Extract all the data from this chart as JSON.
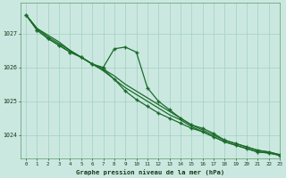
{
  "background_color": "#cbe8e0",
  "plot_bg_color": "#cbe8e0",
  "grid_color": "#a8d4c8",
  "line_color": "#1a6b2a",
  "marker_color": "#1a6b2a",
  "xlabel": "Graphe pression niveau de la mer (hPa)",
  "xlim": [
    -0.5,
    23
  ],
  "ylim": [
    1023.3,
    1027.9
  ],
  "yticks": [
    1024,
    1025,
    1026,
    1027
  ],
  "xticks": [
    0,
    1,
    2,
    3,
    4,
    5,
    6,
    7,
    8,
    9,
    10,
    11,
    12,
    13,
    14,
    15,
    16,
    17,
    18,
    19,
    20,
    21,
    22,
    23
  ],
  "series": [
    {
      "x": [
        0,
        1,
        2,
        3,
        4,
        5,
        6,
        7,
        8,
        9,
        10,
        11,
        12,
        13,
        14,
        15,
        16,
        17,
        18,
        19,
        20,
        21,
        22,
        23
      ],
      "y": [
        1027.55,
        1027.15,
        1026.95,
        1026.75,
        1026.5,
        1026.3,
        1026.1,
        1025.95,
        1025.75,
        1025.5,
        1025.3,
        1025.1,
        1024.9,
        1024.7,
        1024.5,
        1024.3,
        1024.15,
        1024.0,
        1023.85,
        1023.75,
        1023.65,
        1023.55,
        1023.5,
        1023.42
      ],
      "marker": null,
      "linewidth": 0.9
    },
    {
      "x": [
        0,
        1,
        2,
        3,
        4,
        5,
        6,
        7,
        8,
        9,
        10,
        11,
        12,
        13,
        14,
        15,
        16,
        17,
        18,
        19,
        20,
        21,
        22,
        23
      ],
      "y": [
        1027.55,
        1027.15,
        1026.9,
        1026.7,
        1026.5,
        1026.3,
        1026.1,
        1025.9,
        1025.65,
        1025.4,
        1025.2,
        1025.0,
        1024.8,
        1024.6,
        1024.45,
        1024.25,
        1024.1,
        1023.95,
        1023.8,
        1023.7,
        1023.6,
        1023.5,
        1023.47,
        1023.4
      ],
      "marker": null,
      "linewidth": 0.9
    },
    {
      "x": [
        0,
        1,
        2,
        3,
        4,
        5,
        6,
        7,
        8,
        9,
        10,
        11,
        12,
        13,
        14,
        15,
        16,
        17,
        18,
        19,
        20,
        21,
        22,
        23
      ],
      "y": [
        1027.55,
        1027.1,
        1026.85,
        1026.65,
        1026.45,
        1026.3,
        1026.1,
        1026.0,
        1026.55,
        1026.6,
        1026.45,
        1025.4,
        1025.0,
        1024.75,
        1024.5,
        1024.3,
        1024.2,
        1024.05,
        1023.85,
        1023.75,
        1023.65,
        1023.55,
        1023.5,
        1023.42
      ],
      "marker": "+",
      "linewidth": 0.9
    },
    {
      "x": [
        0,
        1,
        2,
        3,
        4,
        5,
        6,
        7,
        8,
        9,
        10,
        11,
        12,
        13,
        14,
        15,
        16,
        17,
        18,
        19,
        20,
        21,
        22,
        23
      ],
      "y": [
        1027.55,
        1027.1,
        1026.85,
        1026.65,
        1026.45,
        1026.3,
        1026.1,
        1025.95,
        1025.65,
        1025.3,
        1025.05,
        1024.85,
        1024.65,
        1024.5,
        1024.35,
        1024.2,
        1024.1,
        1023.95,
        1023.8,
        1023.7,
        1023.6,
        1023.5,
        1023.47,
        1023.4
      ],
      "marker": "+",
      "linewidth": 0.9
    }
  ]
}
